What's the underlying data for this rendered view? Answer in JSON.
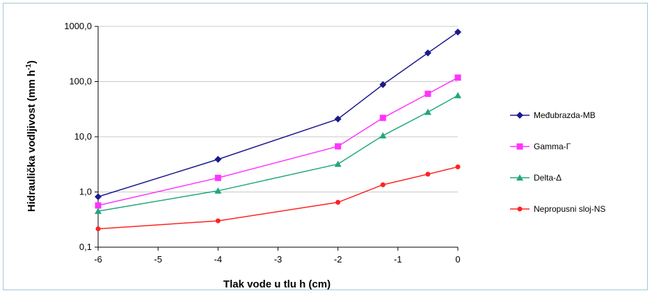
{
  "chart_data": {
    "type": "line",
    "xlabel": "Tlak vode u tlu h (cm)",
    "ylabel_main": "Hidraulička vodljivost (mm h",
    "ylabel_sup": "-1",
    "ylabel_close": ")",
    "yscale": "log",
    "xlim": [
      -6,
      0
    ],
    "ylim": [
      0.1,
      1000
    ],
    "x_ticks": [
      "-6",
      "-5",
      "-4",
      "-3",
      "-2",
      "-1",
      "0"
    ],
    "y_ticks": [
      "0,1",
      "1,0",
      "10,0",
      "100,0",
      "1000,0"
    ],
    "grid": "horizontal",
    "legend_position": "right",
    "series": [
      {
        "name": "Međubrazda-MB",
        "color": "#1a1a8c",
        "marker": "diamond",
        "x": [
          -6,
          -4,
          -2,
          -1.25,
          -0.5,
          0
        ],
        "y": [
          0.82,
          3.9,
          21,
          88,
          330,
          790
        ]
      },
      {
        "name": "Gamma-Γ",
        "color": "#ff33ff",
        "marker": "square",
        "x": [
          -6,
          -4,
          -2,
          -1.25,
          -0.5,
          0
        ],
        "y": [
          0.57,
          1.8,
          6.7,
          22,
          60,
          118
        ]
      },
      {
        "name": "Delta-Δ",
        "color": "#22a77a",
        "marker": "triangle",
        "x": [
          -6,
          -4,
          -2,
          -1.25,
          -0.5,
          0
        ],
        "y": [
          0.45,
          1.05,
          3.2,
          10.5,
          28,
          56
        ]
      },
      {
        "name": "Nepropusni sloj-NS",
        "color": "#ff2222",
        "marker": "circle",
        "x": [
          -6,
          -4,
          -2,
          -1.25,
          -0.5,
          0
        ],
        "y": [
          0.215,
          0.3,
          0.65,
          1.35,
          2.1,
          2.85
        ]
      }
    ]
  }
}
